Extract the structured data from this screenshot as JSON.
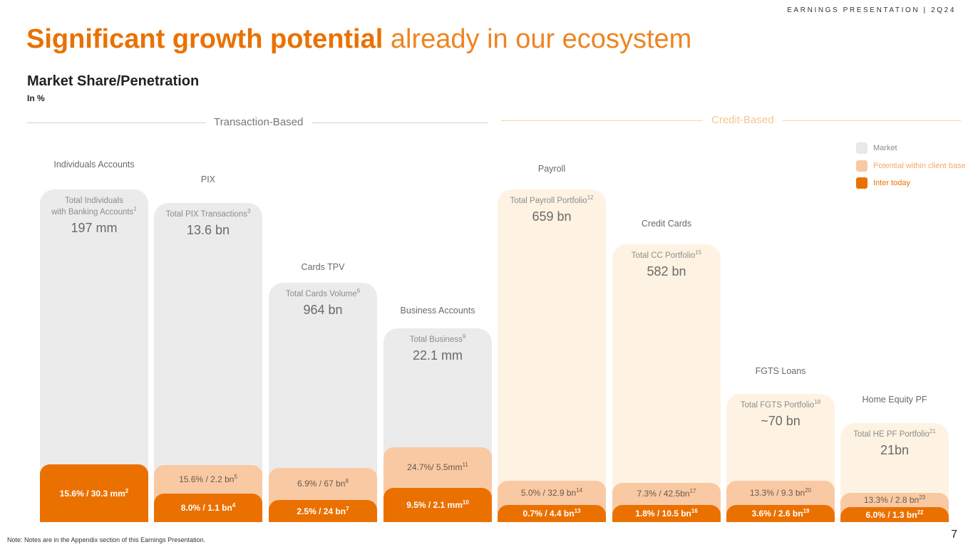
{
  "header": {
    "tag": "EARNINGS PRESENTATION | 2Q24"
  },
  "headline": {
    "bold": "Significant growth potential",
    "light": "already in our ecosystem"
  },
  "subtitle": "Market Share/Penetration",
  "unit": "In %",
  "sections": {
    "transaction": "Transaction-Based",
    "credit": "Credit-Based"
  },
  "legend": {
    "market": "Market",
    "potential": "Potential within client base",
    "inter": "Inter today"
  },
  "colors": {
    "market_bg": "#ebebeb",
    "credit_bg": "#fef3e2",
    "potential": "#f9c9a4",
    "inter": "#ea7100",
    "section_transaction": "#777777",
    "section_credit": "#f7c48f"
  },
  "chart_data": {
    "type": "bar",
    "title": "Market Share/Penetration",
    "unit": "In %",
    "categories": [
      "Individuals Accounts",
      "PIX",
      "Cards TPV",
      "Business Accounts",
      "Payroll",
      "Credit Cards",
      "FGTS Loans",
      "Home Equity PF"
    ],
    "groups": [
      {
        "name": "Transaction-Based",
        "categories": [
          "Individuals Accounts",
          "PIX",
          "Cards TPV",
          "Business Accounts"
        ]
      },
      {
        "name": "Credit-Based",
        "categories": [
          "Payroll",
          "Credit Cards",
          "FGTS Loans",
          "Home Equity PF"
        ]
      }
    ],
    "items": [
      {
        "category": "Individuals Accounts",
        "group": "Transaction-Based",
        "total_label": "Total Individuals with Banking Accounts",
        "total_label_lines": [
          "Total Individuals",
          "with Banking Accounts"
        ],
        "total_note": "1",
        "total_value": "197 mm",
        "potential": null,
        "inter": {
          "label": "15.6% / 30.3 mm",
          "note": "2",
          "percent": 15.6
        }
      },
      {
        "category": "PIX",
        "group": "Transaction-Based",
        "total_label": "Total PIX Transactions",
        "total_note": "3",
        "total_value": "13.6 bn",
        "potential": {
          "label": "15.6% / 2.2 bn",
          "note": "5",
          "percent": 15.6
        },
        "inter": {
          "label": "8.0% / 1.1 bn",
          "note": "4",
          "percent": 8.0
        }
      },
      {
        "category": "Cards TPV",
        "group": "Transaction-Based",
        "total_label": "Total Cards Volume",
        "total_note": "6",
        "total_value": "964 bn",
        "potential": {
          "label": "6.9% / 67 bn",
          "note": "8",
          "percent": 6.9
        },
        "inter": {
          "label": "2.5% / 24 bn",
          "note": "7",
          "percent": 2.5
        }
      },
      {
        "category": "Business Accounts",
        "group": "Transaction-Based",
        "total_label": "Total Business",
        "total_note": "9",
        "total_value": "22.1 mm",
        "potential": {
          "label": "24.7%/ 5.5mm",
          "note": "11",
          "percent": 24.7
        },
        "inter": {
          "label": "9.5% / 2.1 mm",
          "note": "10",
          "percent": 9.5
        }
      },
      {
        "category": "Payroll",
        "group": "Credit-Based",
        "total_label": "Total Payroll Portfolio",
        "total_note": "12",
        "total_value": "659 bn",
        "potential": {
          "label": "5.0% / 32.9 bn",
          "note": "14",
          "percent": 5.0
        },
        "inter": {
          "label": "0.7% / 4.4 bn",
          "note": "13",
          "percent": 0.7
        }
      },
      {
        "category": "Credit Cards",
        "group": "Credit-Based",
        "total_label": "Total CC Portfolio",
        "total_note": "15",
        "total_value": "582 bn",
        "potential": {
          "label": "7.3% / 42.5bn",
          "note": "17",
          "percent": 7.3
        },
        "inter": {
          "label": "1.8% / 10.5 bn",
          "note": "16",
          "percent": 1.8
        }
      },
      {
        "category": "FGTS Loans",
        "group": "Credit-Based",
        "total_label": "Total FGTS Portfolio",
        "total_note": "18",
        "total_value": "~70 bn",
        "potential": {
          "label": "13.3% / 9.3 bn",
          "note": "20",
          "percent": 13.3
        },
        "inter": {
          "label": "3.6% / 2.6 bn",
          "note": "19",
          "percent": 3.6
        }
      },
      {
        "category": "Home Equity PF",
        "group": "Credit-Based",
        "total_label": "Total HE PF Portfolio",
        "total_note": "21",
        "total_value": "21bn",
        "potential": {
          "label": "13.3% / 2.8 bn",
          "note": "23",
          "percent": 13.3
        },
        "inter": {
          "label": "6.0% / 1.3 bn",
          "note": "22",
          "percent": 6.0
        }
      }
    ]
  },
  "footer": {
    "note": "Note: Notes are in the Appendix section of this Earnings Presentation.",
    "page": "7"
  }
}
